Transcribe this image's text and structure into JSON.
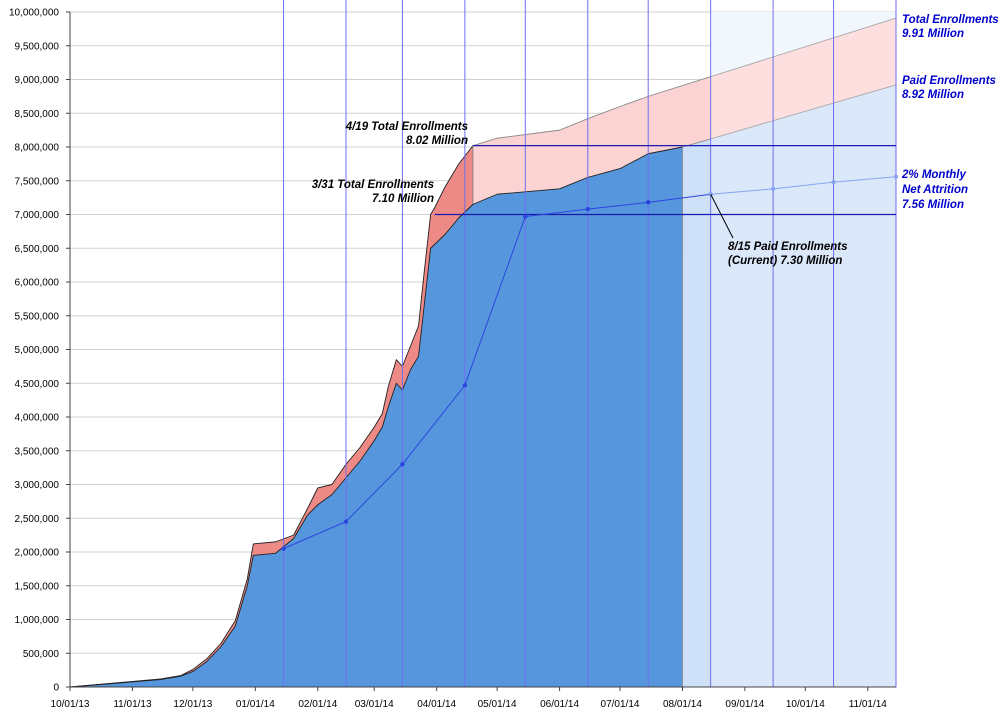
{
  "chart_data": {
    "type": "area",
    "title": "",
    "xlabel": "",
    "ylabel": "",
    "ylim": [
      0,
      10000000
    ],
    "xlim": [
      "2013-10-01",
      "2014-11-15"
    ],
    "grid": "horizontal gridlines; blue vertical lines at mid-month",
    "y_ticks": [
      "0",
      "500,000",
      "1,000,000",
      "1,500,000",
      "2,000,000",
      "2,500,000",
      "3,000,000",
      "3,500,000",
      "4,000,000",
      "4,500,000",
      "5,000,000",
      "5,500,000",
      "6,000,000",
      "6,500,000",
      "7,000,000",
      "7,500,000",
      "8,000,000",
      "8,500,000",
      "9,000,000",
      "9,500,000",
      "10,000,000"
    ],
    "x_ticks": [
      "10/01/13",
      "11/01/13",
      "12/01/13",
      "01/01/14",
      "02/01/14",
      "03/01/14",
      "04/01/14",
      "05/01/14",
      "06/01/14",
      "07/01/14",
      "08/01/14",
      "09/01/14",
      "10/01/14",
      "11/01/14"
    ],
    "reference_lines": [
      {
        "name": "7.0M baseline",
        "y": 7000000,
        "from": "2014-03-31",
        "to": "2014-11-15"
      },
      {
        "name": "8.02M level",
        "y": 8020000,
        "from": "2014-04-19",
        "to": "2014-11-15"
      }
    ],
    "series": [
      {
        "name": "Total Enrollments",
        "kind": "area",
        "color": "#ee8a86",
        "points": [
          [
            "2013-10-01",
            0
          ],
          [
            "2013-11-15",
            120000
          ],
          [
            "2013-11-25",
            170000
          ],
          [
            "2013-12-01",
            260000
          ],
          [
            "2013-12-08",
            420000
          ],
          [
            "2013-12-15",
            650000
          ],
          [
            "2013-12-22",
            980000
          ],
          [
            "2013-12-28",
            1600000
          ],
          [
            "2013-12-31",
            2120000
          ],
          [
            "2014-01-11",
            2150000
          ],
          [
            "2014-01-20",
            2250000
          ],
          [
            "2014-01-27",
            2650000
          ],
          [
            "2014-02-01",
            2950000
          ],
          [
            "2014-02-08",
            3000000
          ],
          [
            "2014-02-15",
            3300000
          ],
          [
            "2014-02-22",
            3550000
          ],
          [
            "2014-03-01",
            3850000
          ],
          [
            "2014-03-05",
            4050000
          ],
          [
            "2014-03-08",
            4450000
          ],
          [
            "2014-03-12",
            4850000
          ],
          [
            "2014-03-15",
            4750000
          ],
          [
            "2014-03-19",
            5050000
          ],
          [
            "2014-03-23",
            5350000
          ],
          [
            "2014-03-26",
            6200000
          ],
          [
            "2014-03-29",
            7000000
          ],
          [
            "2014-03-31",
            7100000
          ],
          [
            "2014-04-05",
            7400000
          ],
          [
            "2014-04-12",
            7750000
          ],
          [
            "2014-04-19",
            8020000
          ]
        ]
      },
      {
        "name": "Total Enrollments (projected)",
        "kind": "area",
        "color": "#fbd3d2",
        "points": [
          [
            "2014-04-19",
            8020000
          ],
          [
            "2014-05-01",
            8130000
          ],
          [
            "2014-06-01",
            8250000
          ],
          [
            "2014-06-15",
            8420000
          ],
          [
            "2014-07-01",
            8600000
          ],
          [
            "2014-07-15",
            8750000
          ],
          [
            "2014-11-15",
            9910000
          ]
        ]
      },
      {
        "name": "Paid Enrollments",
        "kind": "area",
        "color": "#5696dc",
        "points": [
          [
            "2013-10-01",
            0
          ],
          [
            "2013-11-15",
            110000
          ],
          [
            "2013-11-25",
            160000
          ],
          [
            "2013-12-01",
            230000
          ],
          [
            "2013-12-08",
            380000
          ],
          [
            "2013-12-15",
            600000
          ],
          [
            "2013-12-22",
            900000
          ],
          [
            "2013-12-28",
            1500000
          ],
          [
            "2013-12-31",
            1950000
          ],
          [
            "2014-01-11",
            1980000
          ],
          [
            "2014-01-20",
            2200000
          ],
          [
            "2014-01-27",
            2550000
          ],
          [
            "2014-02-01",
            2700000
          ],
          [
            "2014-02-08",
            2850000
          ],
          [
            "2014-02-15",
            3100000
          ],
          [
            "2014-02-22",
            3350000
          ],
          [
            "2014-03-01",
            3650000
          ],
          [
            "2014-03-05",
            3850000
          ],
          [
            "2014-03-08",
            4150000
          ],
          [
            "2014-03-12",
            4500000
          ],
          [
            "2014-03-15",
            4400000
          ],
          [
            "2014-03-19",
            4700000
          ],
          [
            "2014-03-23",
            4900000
          ],
          [
            "2014-03-26",
            5700000
          ],
          [
            "2014-03-29",
            6500000
          ],
          [
            "2014-04-05",
            6700000
          ],
          [
            "2014-04-12",
            6950000
          ],
          [
            "2014-04-19",
            7150000
          ],
          [
            "2014-05-01",
            7300000
          ],
          [
            "2014-06-01",
            7380000
          ],
          [
            "2014-06-15",
            7550000
          ],
          [
            "2014-07-01",
            7680000
          ],
          [
            "2014-07-15",
            7900000
          ],
          [
            "2014-08-01",
            8000000
          ]
        ]
      },
      {
        "name": "Paid Enrollments (projected)",
        "kind": "area",
        "color": "#cde0f8",
        "points": [
          [
            "2014-08-01",
            8000000
          ],
          [
            "2014-08-15",
            8120000
          ],
          [
            "2014-11-15",
            8920000
          ]
        ]
      },
      {
        "name": "Paid Enrollments (monthly, mid-month)",
        "kind": "line",
        "color": "#2b45e0",
        "points": [
          [
            "2014-01-15",
            2050000
          ],
          [
            "2014-02-15",
            2450000
          ],
          [
            "2014-03-15",
            3300000
          ],
          [
            "2014-04-15",
            4470000
          ],
          [
            "2014-05-15",
            6970000
          ],
          [
            "2014-06-15",
            7080000
          ],
          [
            "2014-07-15",
            7180000
          ],
          [
            "2014-08-15",
            7300000
          ]
        ]
      },
      {
        "name": "2% Monthly Net Attrition",
        "kind": "line",
        "color": "#8aa4f0",
        "points": [
          [
            "2014-08-15",
            7300000
          ],
          [
            "2014-09-15",
            7380000
          ],
          [
            "2014-10-15",
            7480000
          ],
          [
            "2014-11-15",
            7560000
          ]
        ]
      }
    ],
    "annotations": [
      {
        "lines": [
          "4/19 Total Enrollments",
          "8.02 Million"
        ],
        "color": "black"
      },
      {
        "lines": [
          "3/31 Total Enrollments",
          "7.10 Million"
        ],
        "color": "black"
      },
      {
        "lines": [
          "8/15 Paid Enrollments",
          "(Current) 7.30 Million"
        ],
        "color": "black"
      },
      {
        "lines": [
          "Total Enrollments",
          "9.91 Million"
        ],
        "color": "blue"
      },
      {
        "lines": [
          "Paid Enrollments",
          "8.92 Million"
        ],
        "color": "blue"
      },
      {
        "lines": [
          "2% Monthly",
          "Net Attrition",
          "7.56 Million"
        ],
        "color": "blue"
      }
    ]
  }
}
